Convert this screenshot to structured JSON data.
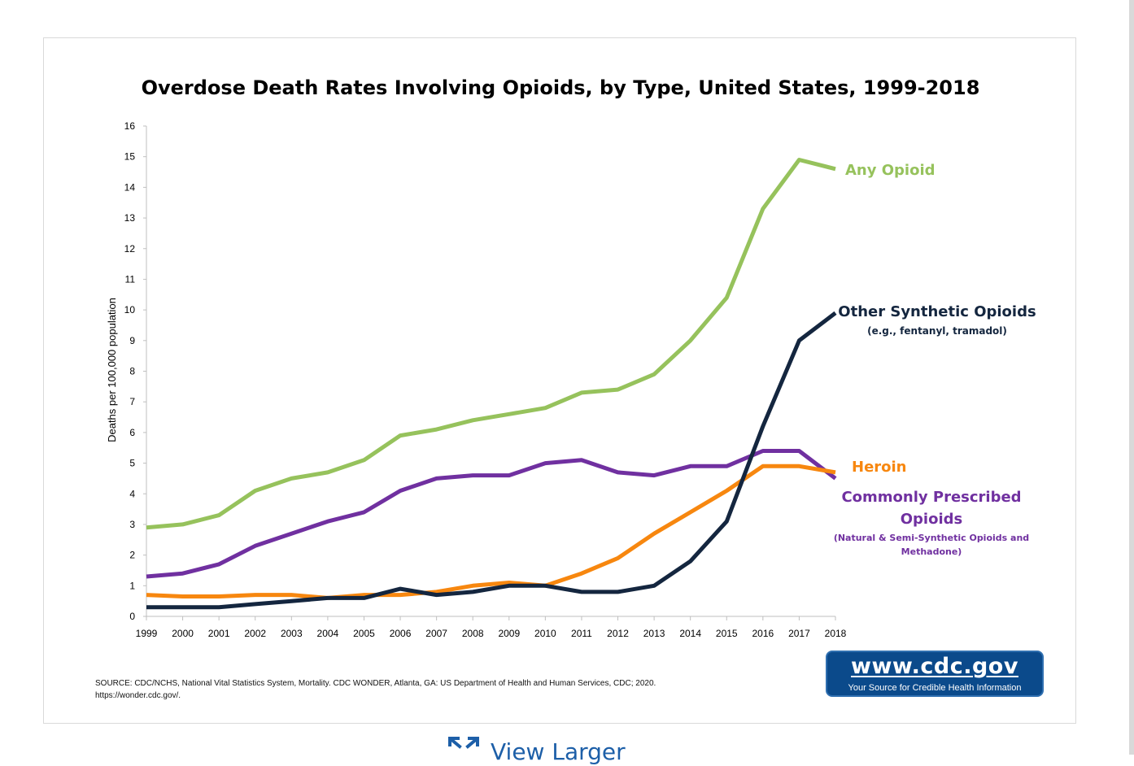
{
  "chart_data": {
    "type": "line",
    "title": "Overdose Death Rates Involving Opioids, by Type, United States, 1999-2018",
    "xlabel": "",
    "ylabel": "Deaths per 100,000 population",
    "ylim": [
      0,
      16
    ],
    "y_ticks": [
      "0",
      "1",
      "2",
      "3",
      "4",
      "5",
      "6",
      "7",
      "8",
      "9",
      "10",
      "11",
      "12",
      "13",
      "14",
      "15",
      "16"
    ],
    "x": [
      "1999",
      "2000",
      "2001",
      "2002",
      "2003",
      "2004",
      "2005",
      "2006",
      "2007",
      "2008",
      "2009",
      "2010",
      "2011",
      "2012",
      "2013",
      "2014",
      "2015",
      "2016",
      "2017",
      "2018"
    ],
    "grid": false,
    "legend": "direct labels at right",
    "series": [
      {
        "name": "Any Opioid",
        "color": "#96c25c",
        "values": [
          2.9,
          3.0,
          3.3,
          4.1,
          4.5,
          4.7,
          5.1,
          5.9,
          6.1,
          6.4,
          6.6,
          6.8,
          7.3,
          7.4,
          7.9,
          9.0,
          10.4,
          13.3,
          14.9,
          14.6
        ]
      },
      {
        "name": "Other Synthetic Opioids",
        "sublabel": "(e.g., fentanyl, tramadol)",
        "color": "#14263f",
        "values": [
          0.3,
          0.3,
          0.3,
          0.4,
          0.5,
          0.6,
          0.6,
          0.9,
          0.7,
          0.8,
          1.0,
          1.0,
          0.8,
          0.8,
          1.0,
          1.8,
          3.1,
          6.2,
          9.0,
          9.9
        ]
      },
      {
        "name": "Heroin",
        "color": "#f7870f",
        "values": [
          0.7,
          0.65,
          0.65,
          0.7,
          0.7,
          0.6,
          0.7,
          0.7,
          0.8,
          1.0,
          1.1,
          1.0,
          1.4,
          1.9,
          2.7,
          3.4,
          4.1,
          4.9,
          4.9,
          4.7
        ]
      },
      {
        "name": "Commonly Prescribed Opioids",
        "sublabel": "(Natural & Semi-Synthetic Opioids and Methadone)",
        "color": "#7030a0",
        "values": [
          1.3,
          1.4,
          1.7,
          2.3,
          2.7,
          3.1,
          3.4,
          4.1,
          4.5,
          4.6,
          4.6,
          5.0,
          5.1,
          4.7,
          4.6,
          4.9,
          4.9,
          5.4,
          5.4,
          4.5
        ]
      }
    ]
  },
  "source": {
    "line1": "SOURCE: CDC/NCHS, National Vital Statistics System, Mortality. CDC WONDER, Atlanta, GA: US Department of Health and Human Services, CDC; 2020.",
    "line2": "https://wonder.cdc.gov/."
  },
  "logo": {
    "url_text": "www.cdc.gov",
    "tagline": "Your Source for Credible Health Information",
    "color": "#0b4a8b"
  },
  "view_larger": {
    "label": "View Larger",
    "icon": "expand-icon"
  }
}
